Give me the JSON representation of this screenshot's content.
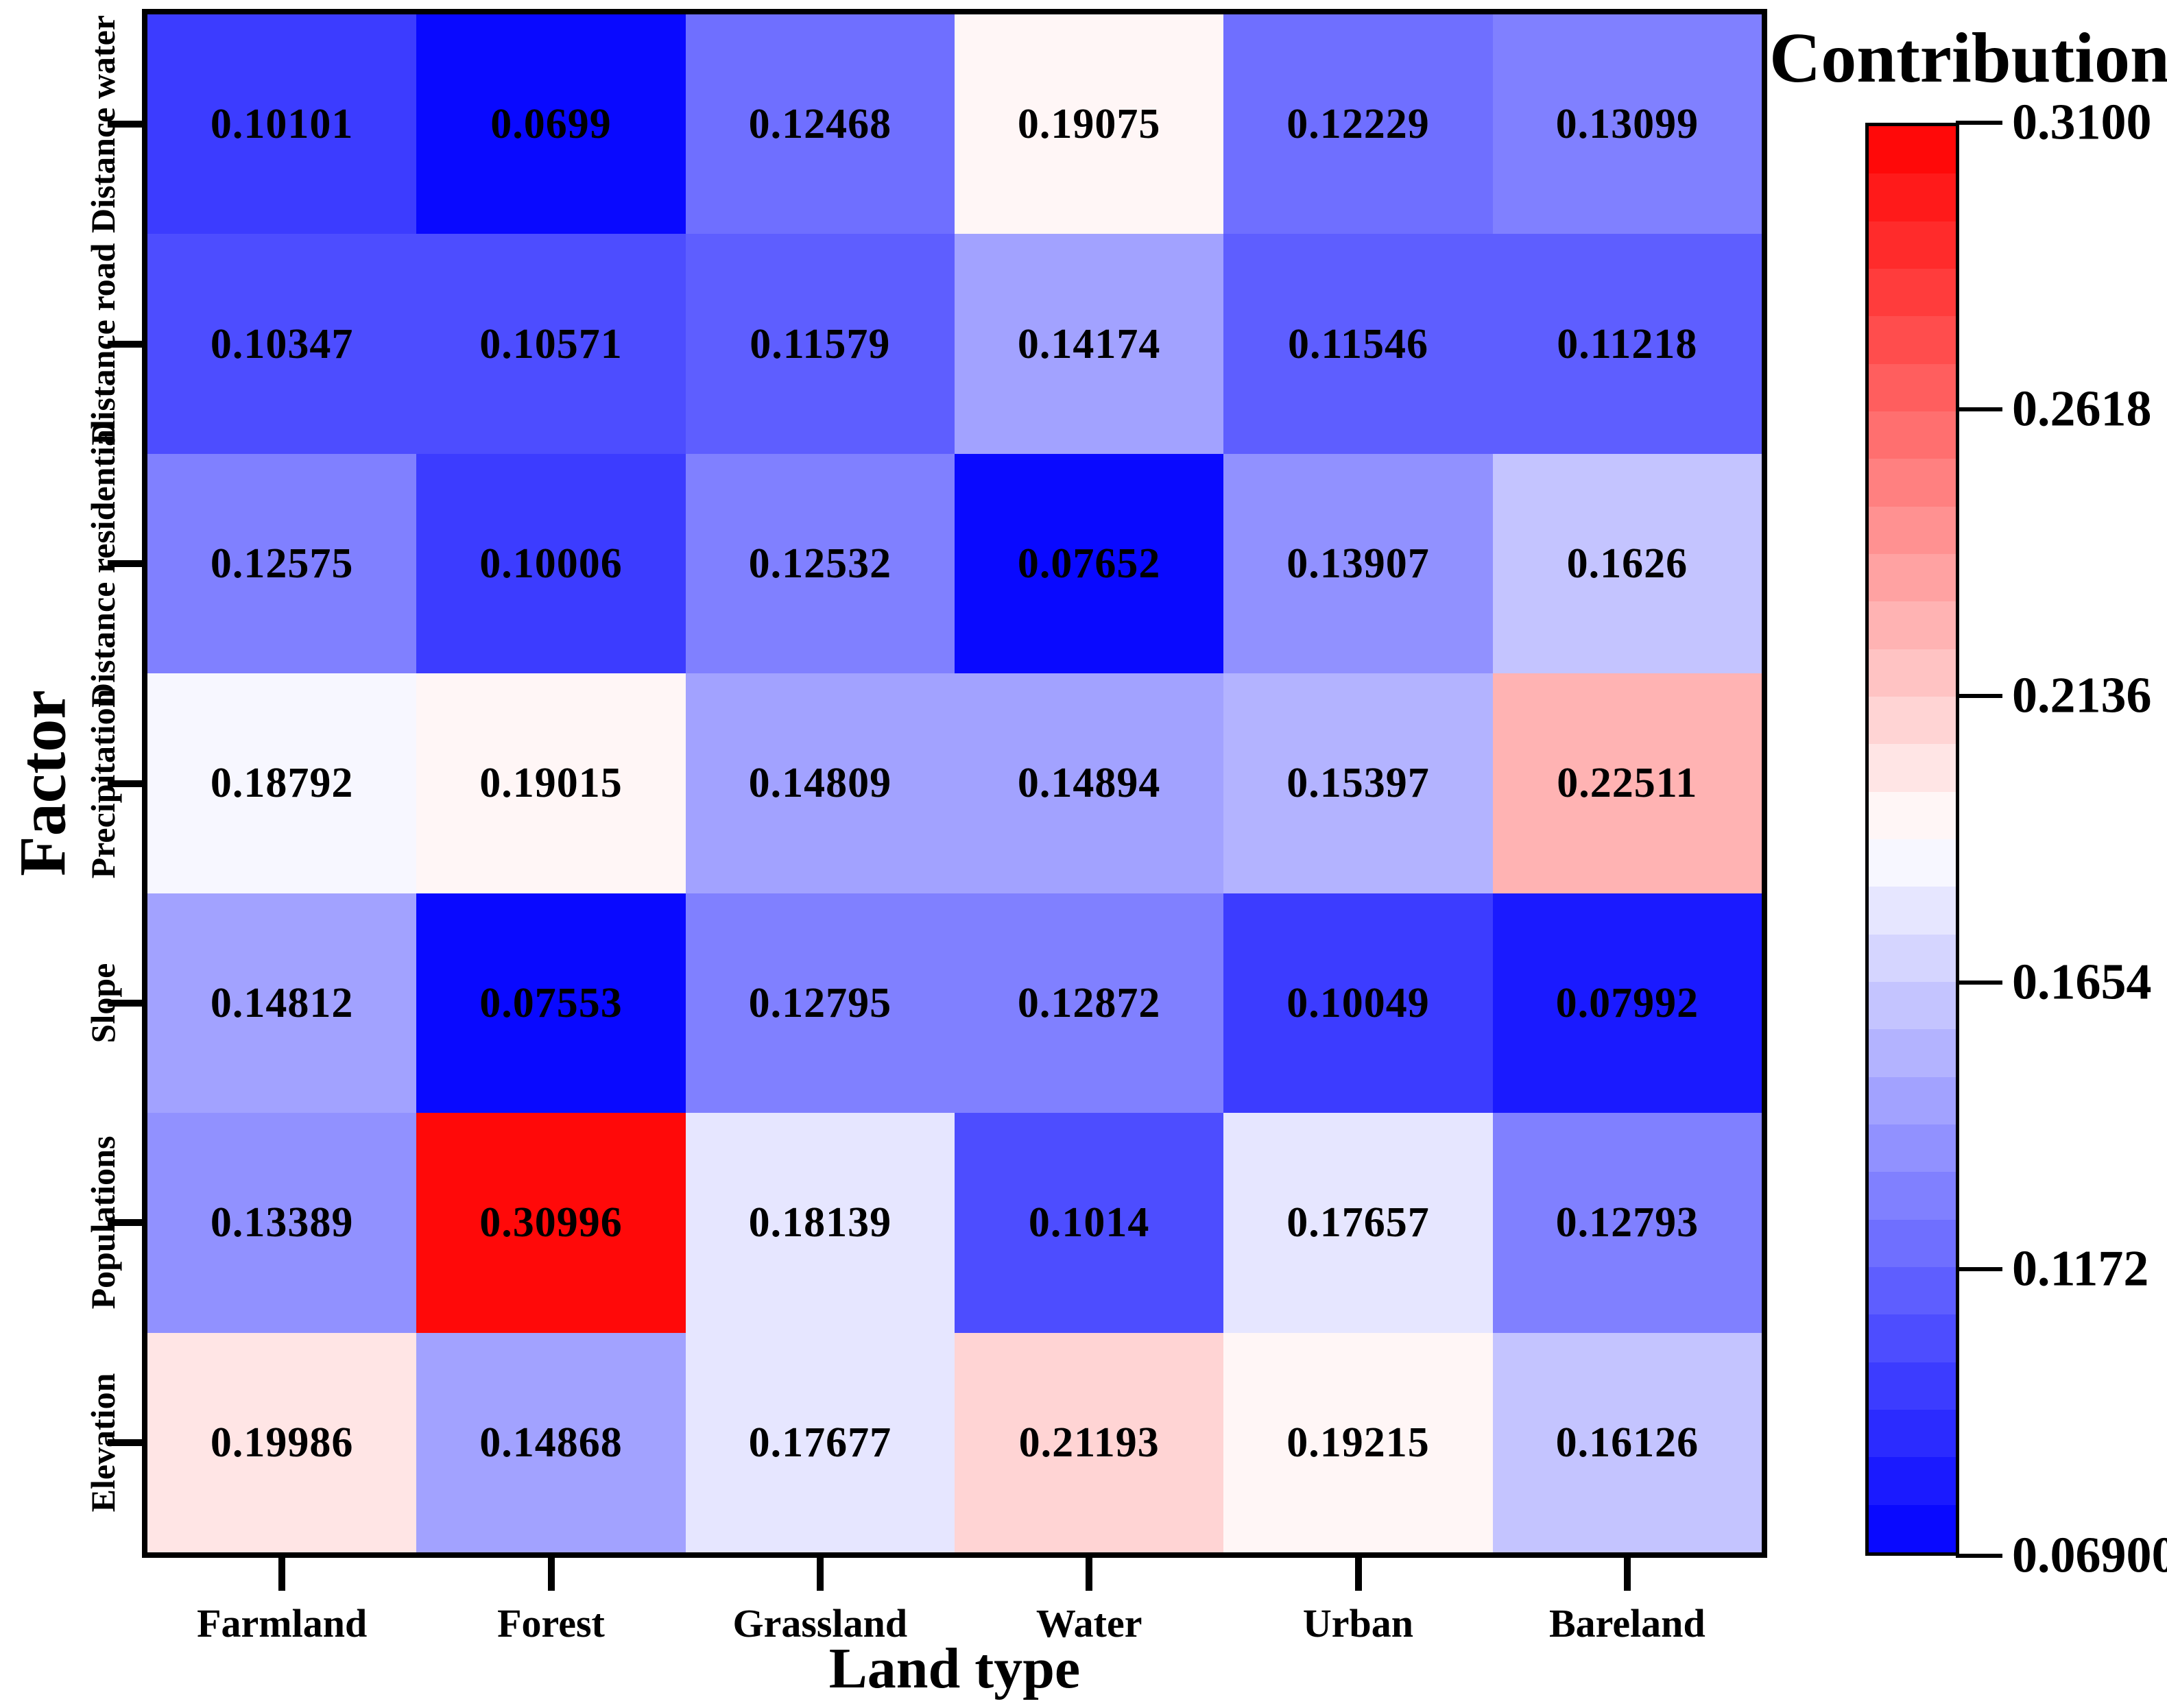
{
  "figure": {
    "x_axis_title": "Land type",
    "y_axis_title": "Factor",
    "colorbar_title": "Contribution"
  },
  "chart_data": {
    "type": "heatmap",
    "title": "",
    "xlabel": "Land type",
    "ylabel": "Factor",
    "columns": [
      "Farmland",
      "Forest",
      "Grassland",
      "Water",
      "Urban",
      "Bareland"
    ],
    "rows": [
      "Distance water",
      "Distance road",
      "Distance residential",
      "Precipitation",
      "Slope",
      "Populations",
      "Elevation"
    ],
    "values": [
      [
        0.10101,
        0.0699,
        0.12468,
        0.19075,
        0.12229,
        0.13099
      ],
      [
        0.10347,
        0.10571,
        0.11579,
        0.14174,
        0.11546,
        0.11218
      ],
      [
        0.12575,
        0.10006,
        0.12532,
        0.07652,
        0.13907,
        0.1626
      ],
      [
        0.18792,
        0.19015,
        0.14809,
        0.14894,
        0.15397,
        0.22511
      ],
      [
        0.14812,
        0.07553,
        0.12795,
        0.12872,
        0.10049,
        0.07992
      ],
      [
        0.13389,
        0.30996,
        0.18139,
        0.1014,
        0.17657,
        0.12793
      ],
      [
        0.19986,
        0.14868,
        0.17677,
        0.21193,
        0.19215,
        0.16126
      ]
    ],
    "value_labels": [
      [
        "0.10101",
        "0.0699",
        "0.12468",
        "0.19075",
        "0.12229",
        "0.13099"
      ],
      [
        "0.10347",
        "0.10571",
        "0.11579",
        "0.14174",
        "0.11546",
        "0.11218"
      ],
      [
        "0.12575",
        "0.10006",
        "0.12532",
        "0.07652",
        "0.13907",
        "0.1626"
      ],
      [
        "0.18792",
        "0.19015",
        "0.14809",
        "0.14894",
        "0.15397",
        "0.22511"
      ],
      [
        "0.14812",
        "0.07553",
        "0.12795",
        "0.12872",
        "0.10049",
        "0.07992"
      ],
      [
        "0.13389",
        "0.30996",
        "0.18139",
        "0.1014",
        "0.17657",
        "0.12793"
      ],
      [
        "0.19986",
        "0.14868",
        "0.17677",
        "0.21193",
        "0.19215",
        "0.16126"
      ]
    ],
    "colorbar": {
      "title": "Contribution",
      "vmin": 0.069,
      "vmax": 0.31,
      "levels": 30,
      "colormap": "blue-white-red",
      "tick_labels": [
        "0.3100",
        "0.2618",
        "0.2136",
        "0.1654",
        "0.1172",
        "0.06900"
      ],
      "tick_values": [
        0.31,
        0.2618,
        0.2136,
        0.1654,
        0.1172,
        0.069
      ]
    },
    "legend_position": "right",
    "grid": false
  }
}
